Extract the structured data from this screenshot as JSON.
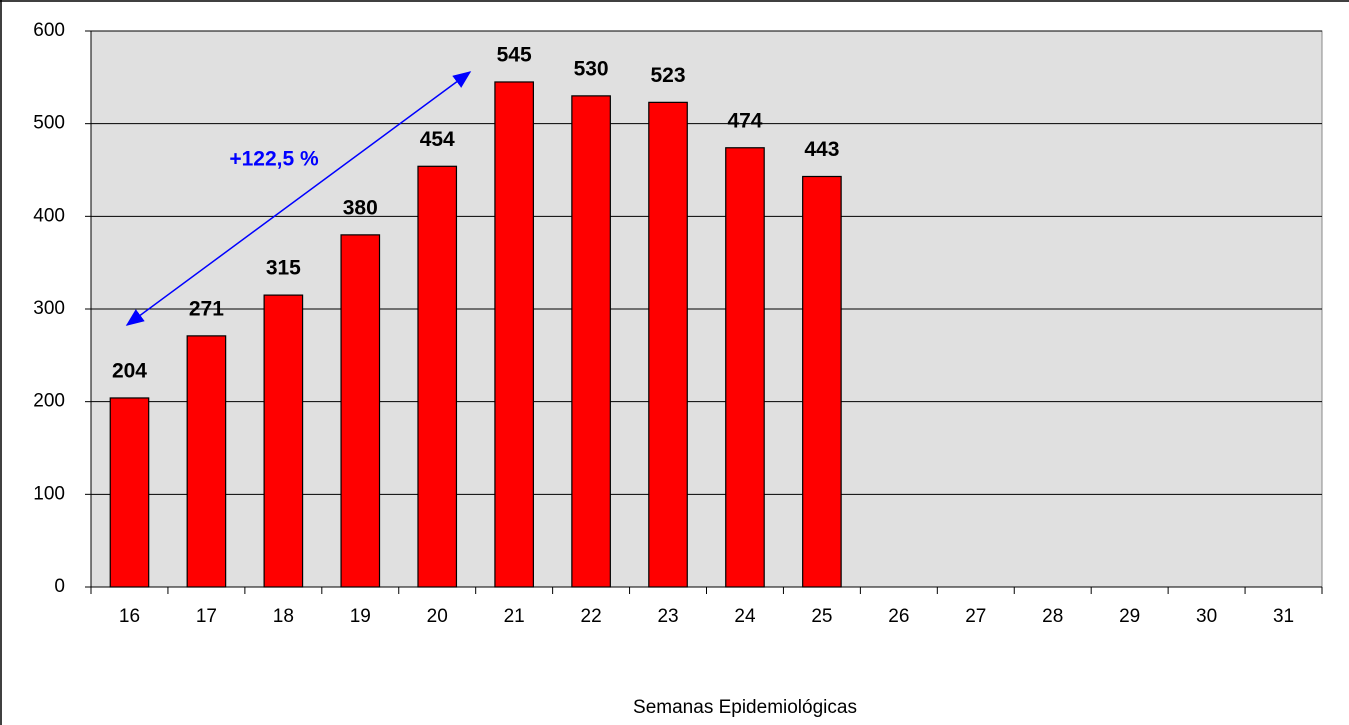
{
  "chart_data": {
    "type": "bar",
    "categories": [
      "16",
      "17",
      "18",
      "19",
      "20",
      "21",
      "22",
      "23",
      "24",
      "25",
      "26",
      "27",
      "28",
      "29",
      "30",
      "31"
    ],
    "values": [
      204,
      271,
      315,
      380,
      454,
      545,
      530,
      523,
      474,
      443,
      null,
      null,
      null,
      null,
      null,
      null
    ],
    "color": "#ff0000",
    "ylim": [
      0,
      600
    ],
    "yticks": [
      0,
      100,
      200,
      300,
      400,
      500,
      600
    ],
    "grid": true,
    "xlabel": "Semanas Epidemiológicas",
    "annotation": "+122,5 %"
  }
}
